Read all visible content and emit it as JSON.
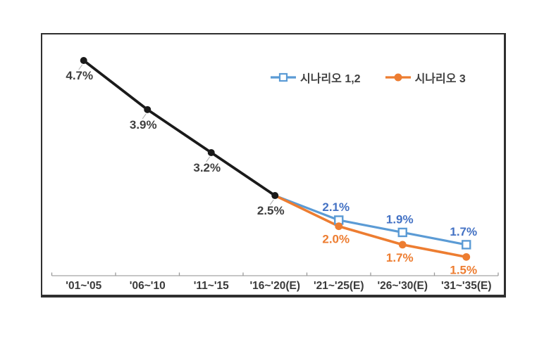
{
  "chart_data": {
    "type": "line",
    "title": "",
    "categories": [
      "'01~'05",
      "'06~'10",
      "'11~'15",
      "'16~'20(E)",
      "'21~'25(E)",
      "'26~'30(E)",
      "'31~'35(E)"
    ],
    "series": [
      {
        "id": "historical",
        "legend": null,
        "color": "#1a1a1a",
        "label_color": "#3f3f3f",
        "marker": "circle-filled",
        "label_position": "below-left",
        "values": [
          4.7,
          3.9,
          3.2,
          2.5,
          null,
          null,
          null
        ],
        "labels": [
          "4.7%",
          "3.9%",
          "3.2%",
          "2.5%",
          null,
          null,
          null
        ]
      },
      {
        "id": "scenario-1-2",
        "legend": "시나리오 1,2",
        "color": "#5B9BD5",
        "label_color": "#4472C4",
        "marker": "square-open",
        "label_position": "above",
        "values": [
          null,
          null,
          null,
          2.5,
          2.1,
          1.9,
          1.7
        ],
        "labels": [
          null,
          null,
          null,
          null,
          "2.1%",
          "1.9%",
          "1.7%"
        ]
      },
      {
        "id": "scenario-3",
        "legend": "시나리오 3",
        "color": "#ED7D31",
        "label_color": "#ED7D31",
        "marker": "circle-filled",
        "label_position": "below",
        "values": [
          null,
          null,
          null,
          2.5,
          2.0,
          1.7,
          1.5
        ],
        "labels": [
          null,
          null,
          null,
          null,
          "2.0%",
          "1.7%",
          "1.5%"
        ]
      }
    ],
    "legend_position": "top-right-inside",
    "grid": false,
    "y_axis_visible": false,
    "ylim": [
      1.2,
      5.2
    ],
    "x_axis": {
      "line_color": "#b3b3b3",
      "tick_color": "#9a9a9a",
      "label_color": "#3a3a3a"
    }
  }
}
